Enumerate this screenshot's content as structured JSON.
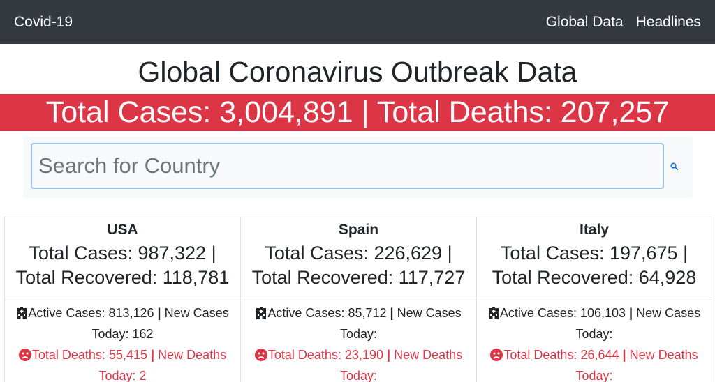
{
  "navbar": {
    "brand": "Covid-19",
    "links": [
      {
        "label": "Global Data"
      },
      {
        "label": "Headlines"
      }
    ]
  },
  "page": {
    "title": "Global Coronavirus Outbreak Data",
    "banner": "Total Cases: 3,004,891 | Total Deaths: 207,257"
  },
  "search": {
    "placeholder": "Search for Country",
    "value": "",
    "icon": "search-icon"
  },
  "colors": {
    "navbar": "#343a40",
    "banner": "#dc3545",
    "deaths_text": "#dc3545"
  },
  "cards": [
    {
      "country": "USA",
      "totals_line1": "Total Cases: 987,322 |",
      "totals_line2": "Total Recovered: 118,781",
      "active_line1_a": "Active Cases: 813,126 ",
      "active_line1_b": " New Cases",
      "active_line2": "Today: 162",
      "deaths_line1_a": "Total Deaths: 55,415 ",
      "deaths_line1_b": " New Deaths",
      "deaths_line2": "Today: 2"
    },
    {
      "country": "Spain",
      "totals_line1": "Total Cases: 226,629 |",
      "totals_line2": "Total Recovered: 117,727",
      "active_line1_a": "Active Cases: 85,712 ",
      "active_line1_b": " New Cases",
      "active_line2": "Today:",
      "deaths_line1_a": "Total Deaths: 23,190 ",
      "deaths_line1_b": " New Deaths",
      "deaths_line2": "Today:"
    },
    {
      "country": "Italy",
      "totals_line1": "Total Cases: 197,675 |",
      "totals_line2": "Total Recovered: 64,928",
      "active_line1_a": "Active Cases: 106,103 ",
      "active_line1_b": " New Cases",
      "active_line2": "Today:",
      "deaths_line1_a": "Total Deaths: 26,644 ",
      "deaths_line1_b": " New Deaths",
      "deaths_line2": "Today:"
    }
  ],
  "separator": "|"
}
